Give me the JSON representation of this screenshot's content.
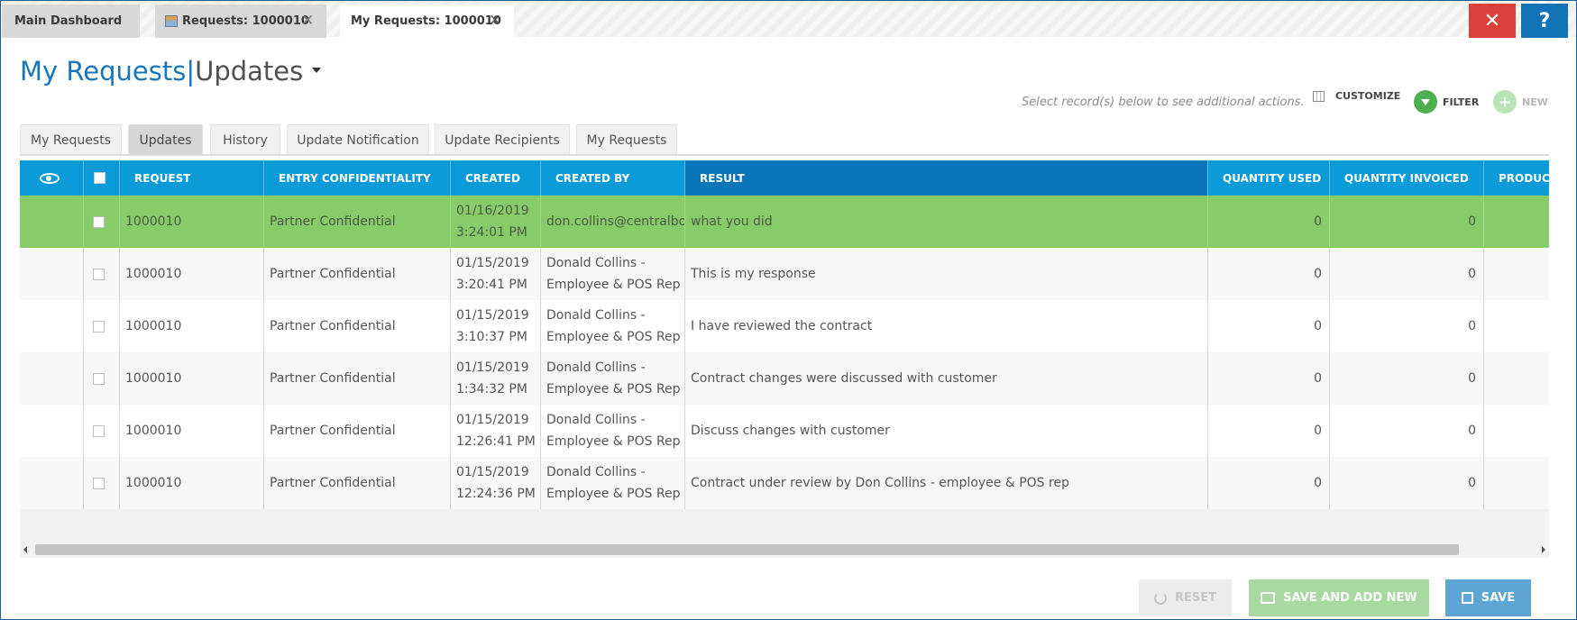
{
  "window_tabs": [
    {
      "label": "Main Dashboard"
    },
    {
      "label": "Requests: 1000010"
    },
    {
      "label": "My Requests: 1000010"
    }
  ],
  "window_buttons": {
    "close": "✕",
    "help": "?"
  },
  "page": {
    "title_main": "My Requests",
    "title_sep": "|",
    "title_sub": "Updates"
  },
  "actions": {
    "hint": "Select record(s) below to see additional actions.",
    "customize": "CUSTOMIZE",
    "filter": "FILTER",
    "new": "NEW"
  },
  "sub_tabs": [
    "My Requests",
    "Updates",
    "History",
    "Update Notification",
    "Update Recipients",
    "My Requests"
  ],
  "active_sub_tab": "Updates",
  "columns": [
    "REQUEST",
    "ENTRY CONFIDENTIALITY",
    "CREATED",
    "CREATED BY",
    "RESULT",
    "QUANTITY USED",
    "QUANTITY INVOICED",
    "PRODUCT"
  ],
  "sorted_column": "RESULT",
  "rows": [
    {
      "request": "1000010",
      "confidentiality": "Partner Confidential",
      "created_date": "01/16/2019",
      "created_time": "3:24:01 PM",
      "created_by_1": "don.collins@centralbos.c",
      "created_by_2": "",
      "result": "what you did",
      "qty_used": "0",
      "qty_invoiced": "0",
      "selected": true
    },
    {
      "request": "1000010",
      "confidentiality": "Partner Confidential",
      "created_date": "01/15/2019",
      "created_time": "3:20:41 PM",
      "created_by_1": "Donald Collins -",
      "created_by_2": "Employee & POS Rep",
      "result": "This is my response",
      "qty_used": "0",
      "qty_invoiced": "0"
    },
    {
      "request": "1000010",
      "confidentiality": "Partner Confidential",
      "created_date": "01/15/2019",
      "created_time": "3:10:37 PM",
      "created_by_1": "Donald Collins -",
      "created_by_2": "Employee & POS Rep",
      "result": "I have reviewed the contract",
      "qty_used": "0",
      "qty_invoiced": "0"
    },
    {
      "request": "1000010",
      "confidentiality": "Partner Confidential",
      "created_date": "01/15/2019",
      "created_time": "1:34:32 PM",
      "created_by_1": "Donald Collins -",
      "created_by_2": "Employee & POS Rep",
      "result": "Contract changes were discussed with customer",
      "qty_used": "0",
      "qty_invoiced": "0"
    },
    {
      "request": "1000010",
      "confidentiality": "Partner Confidential",
      "created_date": "01/15/2019",
      "created_time": "12:26:41 PM",
      "created_by_1": "Donald Collins -",
      "created_by_2": "Employee & POS Rep",
      "result": "Discuss changes with customer",
      "qty_used": "0",
      "qty_invoiced": "0"
    },
    {
      "request": "1000010",
      "confidentiality": "Partner Confidential",
      "created_date": "01/15/2019",
      "created_time": "12:24:36 PM",
      "created_by_1": "Donald Collins -",
      "created_by_2": "Employee & POS Rep",
      "result": "Contract under review by Don Collins - employee & POS rep",
      "qty_used": "0",
      "qty_invoiced": "0"
    }
  ],
  "footer": {
    "reset": "RESET",
    "save_add_new": "SAVE AND ADD NEW",
    "save": "SAVE"
  },
  "colors": {
    "header": "#0a9bd8",
    "sorted_header": "#0876b8",
    "selected_row": "#88cc6a",
    "title": "#1b75bb",
    "close": "#d9413a",
    "help": "#1273b6"
  }
}
